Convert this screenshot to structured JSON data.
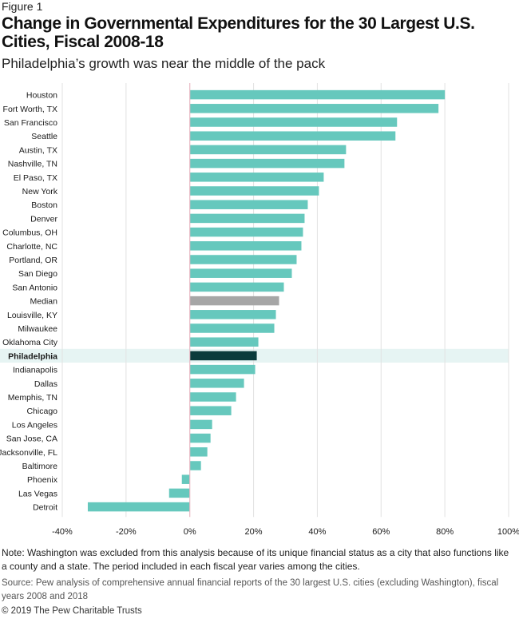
{
  "figure_label": "Figure 1",
  "title": "Change in Governmental Expenditures for the 30 Largest U.S. Cities, Fiscal 2008-18",
  "subtitle": "Philadelphia’s growth was near the middle of the pack",
  "note": "Note: Washington was excluded from this analysis because of its unique financial status as a city that also functions like a county and a state. The period included in each fiscal year varies among the cities.",
  "source": "Source: Pew analysis of comprehensive annual financial reports of the 30 largest U.S. cities (excluding Washington), fiscal years 2008 and 2018",
  "copyright": "© 2019 The Pew Charitable Trusts",
  "colors": {
    "bar": "#66c8bd",
    "median": "#a6a6a6",
    "highlight": "#0b3b3c",
    "highlight_band": "#e6f4f3",
    "zero_line": "#e7b9c4"
  },
  "chart_data": {
    "type": "bar",
    "orientation": "horizontal",
    "categories": [
      "Houston",
      "Fort Worth, TX",
      "San Francisco",
      "Seattle",
      "Austin, TX",
      "Nashville, TN",
      "El Paso, TX",
      "New York",
      "Boston",
      "Denver",
      "Columbus, OH",
      "Charlotte, NC",
      "Portland, OR",
      "San Diego",
      "San Antonio",
      "Median",
      "Louisville, KY",
      "Milwaukee",
      "Oklahoma City",
      "Philadelphia",
      "Indianapolis",
      "Dallas",
      "Memphis, TN",
      "Chicago",
      "Los Angeles",
      "San Jose, CA",
      "Jacksonville, FL",
      "Baltimore",
      "Phoenix",
      "Las Vegas",
      "Detroit"
    ],
    "values": [
      80,
      78,
      65,
      64.5,
      49,
      48.5,
      42,
      40.5,
      37,
      36,
      35.5,
      35,
      33.5,
      32,
      29.5,
      28,
      27,
      26.5,
      21.5,
      21,
      20.5,
      17,
      14.5,
      13,
      7,
      6.5,
      5.5,
      3.5,
      -2.5,
      -6.5,
      -32
    ],
    "median_category": "Median",
    "highlight_category": "Philadelphia",
    "xlim": [
      -40,
      100
    ],
    "xticks": [
      "-40%",
      "-20%",
      "0%",
      "20%",
      "40%",
      "60%",
      "80%",
      "100%"
    ],
    "xtick_values": [
      -40,
      -20,
      0,
      20,
      40,
      60,
      80,
      100
    ],
    "grid": "vertical",
    "legend": "none"
  }
}
